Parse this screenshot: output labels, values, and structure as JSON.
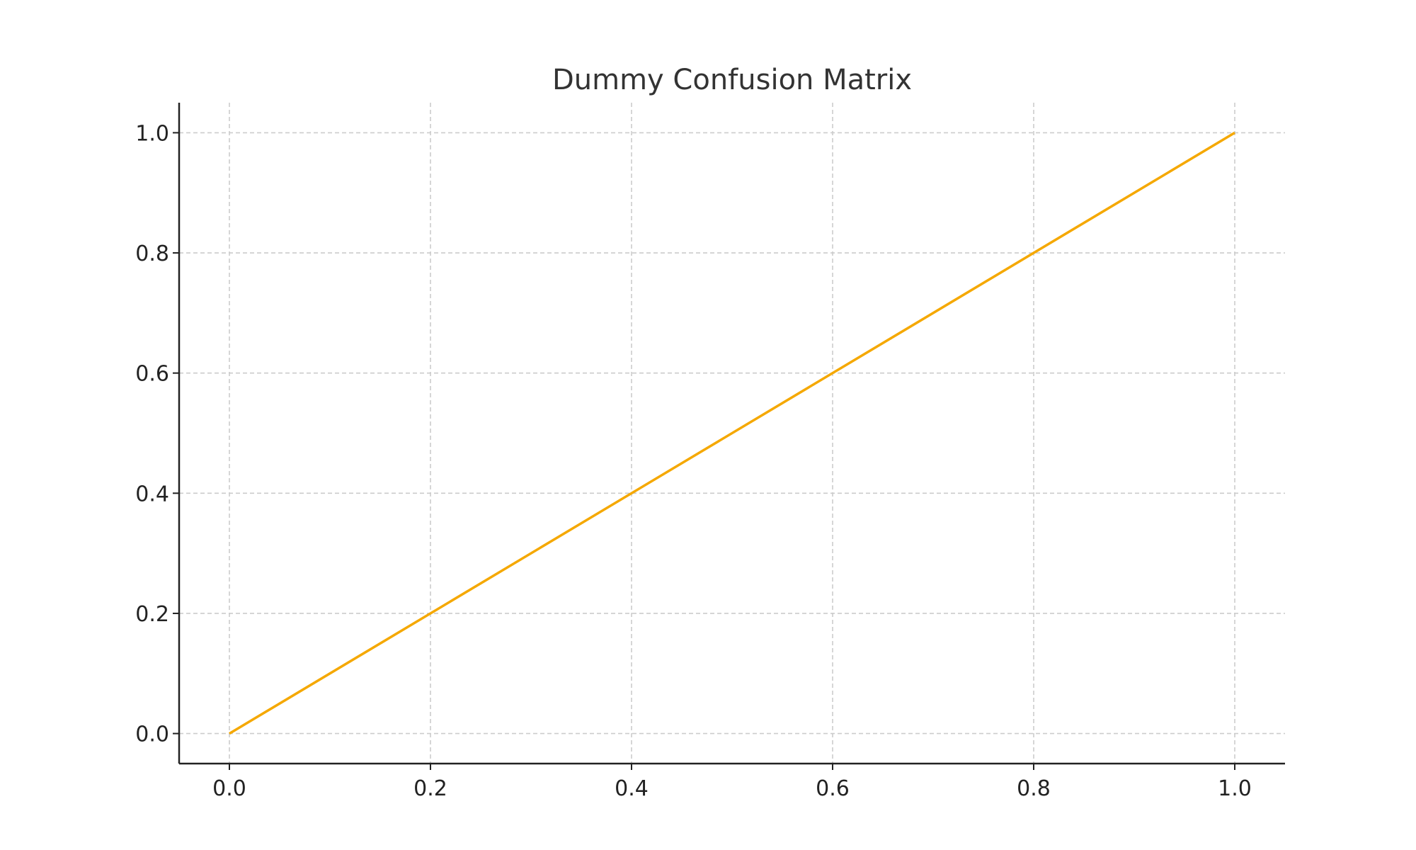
{
  "chart_data": {
    "type": "line",
    "title": "Dummy Confusion Matrix",
    "xlabel": "",
    "ylabel": "",
    "xlim": [
      -0.05,
      1.05
    ],
    "ylim": [
      -0.05,
      1.05
    ],
    "xticks": [
      "0.0",
      "0.2",
      "0.4",
      "0.6",
      "0.8",
      "1.0"
    ],
    "yticks": [
      "0.0",
      "0.2",
      "0.4",
      "0.6",
      "0.8",
      "1.0"
    ],
    "grid": true,
    "legend": "none",
    "series": [
      {
        "color": "#f5a800",
        "x": [
          0.0,
          1.0
        ],
        "y": [
          0.0,
          1.0
        ]
      }
    ]
  }
}
